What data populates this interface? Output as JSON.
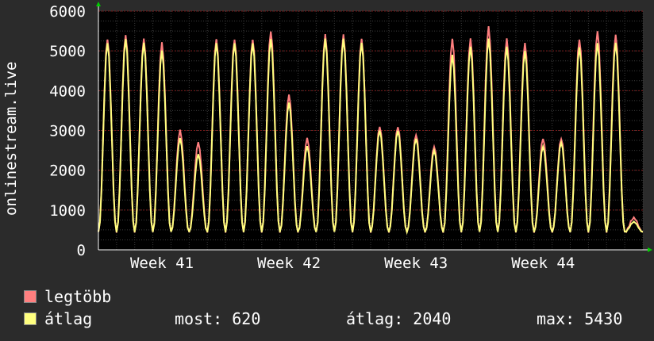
{
  "chart_data": {
    "type": "line",
    "ylabel": "onlinestream.live",
    "ylim": [
      0,
      6000
    ],
    "yticks": [
      0,
      1000,
      2000,
      3000,
      4000,
      5000,
      6000
    ],
    "xticks": [
      "Week 41",
      "Week 42",
      "Week 43",
      "Week 44"
    ],
    "grid": true,
    "daily_peaks_max": [
      5300,
      5400,
      5300,
      5200,
      3000,
      2700,
      5300,
      5300,
      5300,
      5500,
      3900,
      2800,
      5400,
      5400,
      5300,
      3100,
      3100,
      2900,
      2600,
      5300,
      5300,
      5600,
      5300,
      5200,
      2800,
      2800,
      5300,
      5500,
      5400,
      800
    ],
    "daily_peaks_avg": [
      5200,
      5300,
      5200,
      5000,
      2800,
      2400,
      5200,
      5200,
      5200,
      5300,
      3700,
      2600,
      5300,
      5300,
      5200,
      3000,
      3000,
      2800,
      2500,
      4900,
      5100,
      5300,
      5100,
      5000,
      2600,
      2700,
      5100,
      5200,
      5200,
      700
    ],
    "daily_min": 450,
    "series": [
      {
        "name": "legtöbb",
        "color": "#ff7f7f"
      },
      {
        "name": "átlag",
        "color": "#ffff7f"
      }
    ]
  },
  "stats": {
    "now_label": "most:",
    "now_value": "620",
    "avg_label": "átlag:",
    "avg_value": "2040",
    "max_label": "max:",
    "max_value": "5430"
  },
  "colors": {
    "background": "#2b2b2b",
    "plot_bg": "#000000",
    "grid_major": "#7a1a1a",
    "grid_minor": "#3c3c3c"
  }
}
